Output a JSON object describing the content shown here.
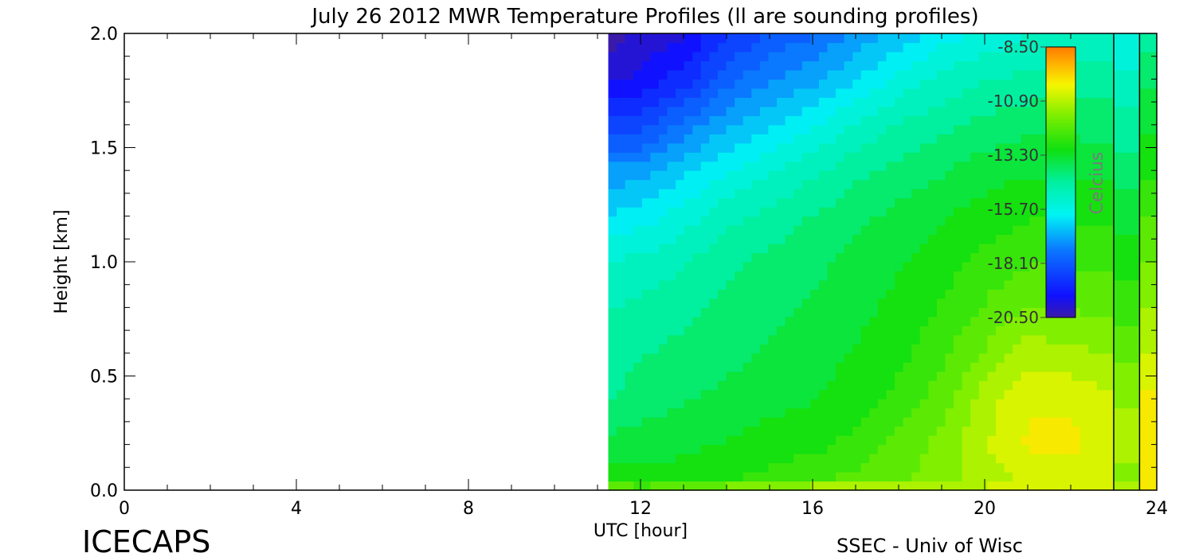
{
  "chart_data": {
    "type": "heatmap",
    "title": "July 26 2012 MWR Temperature Profiles (ll are sounding profiles)",
    "xlabel": "UTC [hour]",
    "ylabel": "Height [km]",
    "xlim": [
      0,
      24
    ],
    "ylim": [
      0,
      2
    ],
    "x_ticks": [
      "0",
      "4",
      "8",
      "12",
      "16",
      "20",
      "24"
    ],
    "y_ticks": [
      "0.0",
      "0.5",
      "1.0",
      "1.5",
      "2.0"
    ],
    "data_start_hour": 11.25,
    "sounding_profile_hours": [
      23.0,
      23.6
    ],
    "heights_km": [
      0.0,
      0.05,
      0.2,
      0.4,
      0.6,
      0.8,
      1.0,
      1.2,
      1.4,
      1.6,
      1.8,
      2.0
    ],
    "columns": [
      {
        "hour": 11.25,
        "temps": [
          -11.5,
          -13.0,
          -13.6,
          -14.3,
          -14.5,
          -14.8,
          -15.2,
          -16.2,
          -17.1,
          -18.6,
          -19.9,
          -20.5
        ]
      },
      {
        "hour": 12.0,
        "temps": [
          -11.8,
          -13.1,
          -13.5,
          -14.0,
          -14.3,
          -14.6,
          -15.1,
          -16.0,
          -17.0,
          -18.5,
          -19.6,
          -20.2
        ]
      },
      {
        "hour": 13.0,
        "temps": [
          -11.4,
          -13.0,
          -13.4,
          -13.8,
          -14.1,
          -14.4,
          -14.8,
          -15.5,
          -16.4,
          -17.6,
          -19.0,
          -19.8
        ]
      },
      {
        "hour": 14.0,
        "temps": [
          -11.0,
          -12.8,
          -13.2,
          -13.6,
          -13.9,
          -14.1,
          -14.4,
          -14.9,
          -15.8,
          -16.8,
          -18.0,
          -18.8
        ]
      },
      {
        "hour": 15.0,
        "temps": [
          -10.8,
          -12.6,
          -13.0,
          -13.4,
          -13.7,
          -13.9,
          -14.1,
          -14.6,
          -15.3,
          -16.3,
          -17.3,
          -18.2
        ]
      },
      {
        "hour": 16.0,
        "temps": [
          -10.5,
          -12.4,
          -12.9,
          -13.3,
          -13.5,
          -13.7,
          -13.9,
          -14.2,
          -14.9,
          -15.8,
          -16.9,
          -17.8
        ]
      },
      {
        "hour": 17.0,
        "temps": [
          -10.3,
          -12.1,
          -12.6,
          -13.0,
          -13.2,
          -13.4,
          -13.6,
          -13.9,
          -14.4,
          -15.2,
          -16.3,
          -17.1
        ]
      },
      {
        "hour": 18.0,
        "temps": [
          -10.4,
          -11.8,
          -12.1,
          -12.6,
          -12.9,
          -13.1,
          -13.3,
          -13.6,
          -14.1,
          -14.7,
          -15.6,
          -16.6
        ]
      },
      {
        "hour": 19.0,
        "temps": [
          -10.7,
          -11.5,
          -11.6,
          -12.0,
          -12.4,
          -12.7,
          -13.0,
          -13.3,
          -13.8,
          -14.4,
          -15.1,
          -16.0
        ]
      },
      {
        "hour": 20.0,
        "temps": [
          -10.6,
          -11.0,
          -10.8,
          -11.0,
          -11.7,
          -12.2,
          -12.6,
          -13.0,
          -13.5,
          -14.1,
          -14.8,
          -15.6
        ]
      },
      {
        "hour": 21.0,
        "temps": [
          -10.3,
          -10.6,
          -10.2,
          -10.3,
          -11.0,
          -11.7,
          -12.3,
          -12.8,
          -13.3,
          -13.9,
          -14.6,
          -15.3
        ]
      },
      {
        "hour": 22.0,
        "temps": [
          -10.2,
          -10.5,
          -10.1,
          -10.4,
          -11.1,
          -11.8,
          -12.3,
          -12.8,
          -13.3,
          -13.9,
          -14.5,
          -15.2
        ]
      },
      {
        "hour": 23.0,
        "temps": [
          -10.4,
          -10.8,
          -10.5,
          -10.7,
          -11.3,
          -11.9,
          -12.4,
          -12.9,
          -13.4,
          -14.0,
          -14.5,
          -15.1
        ]
      }
    ],
    "colorbar": {
      "label": "Celcius",
      "range": [
        -20.5,
        -8.5
      ],
      "ticks": [
        "-8.50",
        "-10.90",
        "-13.30",
        "-15.70",
        "-18.10",
        "-20.50"
      ]
    },
    "grid": false
  },
  "footer": {
    "brand": "ICECAPS",
    "credit": "SSEC - Univ of Wisc"
  }
}
